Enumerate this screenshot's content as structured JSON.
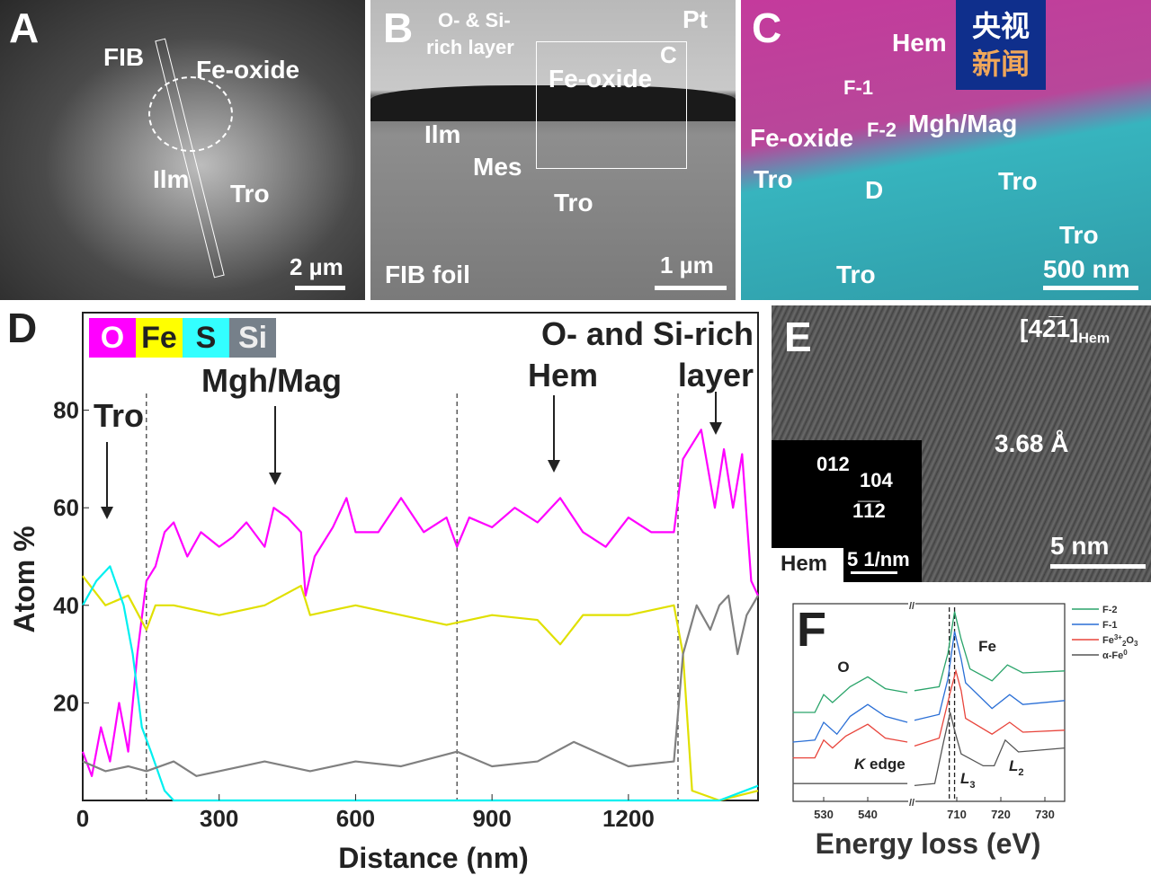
{
  "panels": {
    "A": {
      "letter": "A",
      "labels": {
        "fib": "FIB",
        "fe_oxide": "Fe-oxide",
        "ilm": "Ilm",
        "tro": "Tro"
      },
      "scale_bar": "2 µm"
    },
    "B": {
      "letter": "B",
      "labels": {
        "o_si": "O- & Si-",
        "rich": "rich layer",
        "pt": "Pt",
        "c": "C",
        "fe_oxide": "Fe-oxide",
        "ilm": "Ilm",
        "mes": "Mes",
        "tro": "Tro",
        "fib_foil": "FIB foil"
      },
      "scale_bar": "1 µm"
    },
    "C": {
      "letter": "C",
      "labels": {
        "hem": "Hem",
        "f1": "F-1",
        "f2": "F-2",
        "mgh": "Mgh/Mag",
        "fe_oxide": "Fe-oxide",
        "tro1": "Tro",
        "d": "D",
        "tro2": "Tro",
        "tro3": "Tro",
        "tro4": "Tro"
      },
      "scale_bar": "500 nm",
      "logo": {
        "line1": "央视",
        "line2": "新闻"
      },
      "colors": {
        "fe_oxide_map": "#c43a9c",
        "tro_map": "#37b4be"
      }
    },
    "E": {
      "letter": "E",
      "zone_axis": "[42̅1]",
      "zone_sub": "Hem",
      "d_spacing": "3.68 Å",
      "scale_bar": "5 nm",
      "inset": {
        "spots": [
          "012",
          "104",
          "1̅1̅2"
        ],
        "phase": "Hem",
        "scale": "5 1/nm"
      }
    }
  },
  "chart_data": [
    {
      "panel": "D",
      "type": "line",
      "xlabel": "Distance (nm)",
      "ylabel": "Atom %",
      "xlim": [
        0,
        1485
      ],
      "ylim": [
        0,
        100
      ],
      "xticks": [
        0,
        300,
        600,
        900,
        1200
      ],
      "yticks": [
        20,
        40,
        60,
        80
      ],
      "legend": [
        {
          "name": "O",
          "color": "#ff00ff"
        },
        {
          "name": "Fe",
          "color": "#ffff00"
        },
        {
          "name": "S",
          "color": "#33ffff"
        },
        {
          "name": "Si",
          "color": "#76808a"
        }
      ],
      "legend_placement": "top-left",
      "boundaries_nm": [
        140,
        823,
        1309
      ],
      "annotations": [
        {
          "text": "Tro",
          "x": 55
        },
        {
          "text": "Mgh/Mag",
          "x": 425
        },
        {
          "text": "Hem",
          "x": 1040
        },
        {
          "text": "O- and Si-rich",
          "line2": "layer",
          "x": 1390
        }
      ],
      "series": [
        {
          "name": "O",
          "color": "#ff00ff",
          "points": [
            [
              0,
              10
            ],
            [
              20,
              5
            ],
            [
              40,
              15
            ],
            [
              60,
              8
            ],
            [
              80,
              20
            ],
            [
              100,
              10
            ],
            [
              120,
              30
            ],
            [
              140,
              45
            ],
            [
              160,
              48
            ],
            [
              180,
              55
            ],
            [
              200,
              57
            ],
            [
              230,
              50
            ],
            [
              260,
              55
            ],
            [
              300,
              52
            ],
            [
              330,
              54
            ],
            [
              360,
              57
            ],
            [
              400,
              52
            ],
            [
              420,
              60
            ],
            [
              450,
              58
            ],
            [
              480,
              55
            ],
            [
              490,
              42
            ],
            [
              510,
              50
            ],
            [
              550,
              56
            ],
            [
              580,
              62
            ],
            [
              600,
              55
            ],
            [
              650,
              55
            ],
            [
              700,
              62
            ],
            [
              750,
              55
            ],
            [
              800,
              58
            ],
            [
              823,
              52
            ],
            [
              850,
              58
            ],
            [
              900,
              56
            ],
            [
              950,
              60
            ],
            [
              1000,
              57
            ],
            [
              1050,
              62
            ],
            [
              1100,
              55
            ],
            [
              1150,
              52
            ],
            [
              1200,
              58
            ],
            [
              1250,
              55
            ],
            [
              1300,
              55
            ],
            [
              1320,
              70
            ],
            [
              1360,
              76
            ],
            [
              1390,
              60
            ],
            [
              1410,
              72
            ],
            [
              1430,
              60
            ],
            [
              1450,
              71
            ],
            [
              1470,
              45
            ],
            [
              1485,
              42
            ]
          ]
        },
        {
          "name": "Fe",
          "color": "#e0e000",
          "points": [
            [
              0,
              46
            ],
            [
              50,
              40
            ],
            [
              100,
              42
            ],
            [
              140,
              35
            ],
            [
              160,
              40
            ],
            [
              200,
              40
            ],
            [
              300,
              38
            ],
            [
              400,
              40
            ],
            [
              480,
              44
            ],
            [
              500,
              38
            ],
            [
              600,
              40
            ],
            [
              700,
              38
            ],
            [
              800,
              36
            ],
            [
              900,
              38
            ],
            [
              1000,
              37
            ],
            [
              1050,
              32
            ],
            [
              1100,
              38
            ],
            [
              1200,
              38
            ],
            [
              1300,
              40
            ],
            [
              1320,
              30
            ],
            [
              1340,
              2
            ],
            [
              1400,
              0
            ],
            [
              1485,
              2
            ]
          ]
        },
        {
          "name": "S",
          "color": "#00f0f0",
          "points": [
            [
              0,
              40
            ],
            [
              30,
              45
            ],
            [
              60,
              48
            ],
            [
              90,
              40
            ],
            [
              110,
              30
            ],
            [
              130,
              15
            ],
            [
              150,
              10
            ],
            [
              180,
              2
            ],
            [
              200,
              0
            ],
            [
              600,
              0
            ],
            [
              1000,
              0
            ],
            [
              1400,
              0
            ],
            [
              1485,
              3
            ]
          ]
        },
        {
          "name": "Si",
          "color": "#808080",
          "points": [
            [
              0,
              8
            ],
            [
              50,
              6
            ],
            [
              100,
              7
            ],
            [
              140,
              6
            ],
            [
              200,
              8
            ],
            [
              250,
              5
            ],
            [
              300,
              6
            ],
            [
              400,
              8
            ],
            [
              500,
              6
            ],
            [
              600,
              8
            ],
            [
              700,
              7
            ],
            [
              823,
              10
            ],
            [
              900,
              7
            ],
            [
              1000,
              8
            ],
            [
              1080,
              12
            ],
            [
              1200,
              7
            ],
            [
              1300,
              8
            ],
            [
              1320,
              30
            ],
            [
              1350,
              40
            ],
            [
              1380,
              35
            ],
            [
              1400,
              40
            ],
            [
              1420,
              42
            ],
            [
              1440,
              30
            ],
            [
              1460,
              38
            ],
            [
              1485,
              42
            ]
          ]
        }
      ]
    },
    {
      "panel": "F",
      "type": "line",
      "xlabel": "Energy loss (eV)",
      "x_segments": [
        [
          523,
          549
        ],
        [
          700.4,
          734.5
        ]
      ],
      "xticks": [
        530,
        540,
        710,
        720,
        730
      ],
      "y_units": "arbitrary (offset)",
      "reference_lines_eV": [
        708.3,
        709.5
      ],
      "annotations": {
        "o": "O",
        "fe": "Fe",
        "k_edge_k": "K",
        "k_edge": " edge",
        "l3": "L",
        "l3_sub": "3",
        "l2": "L",
        "l2_sub": "2"
      },
      "legend_placement": "right",
      "series": [
        {
          "name": "F-2",
          "color": "#2aa46a",
          "o": [
            [
              523,
              45
            ],
            [
              528,
              45
            ],
            [
              530,
              54
            ],
            [
              532,
              50
            ],
            [
              536,
              58
            ],
            [
              540,
              63
            ],
            [
              544,
              57
            ],
            [
              549,
              55
            ]
          ],
          "fe": [
            [
              700.4,
              56
            ],
            [
              706,
              58
            ],
            [
              708,
              75
            ],
            [
              709.5,
              96
            ],
            [
              711,
              82
            ],
            [
              713,
              67
            ],
            [
              718,
              61
            ],
            [
              721.5,
              69
            ],
            [
              725,
              65
            ],
            [
              734.5,
              66
            ]
          ]
        },
        {
          "name": "F-1",
          "color": "#2a6fd6",
          "o": [
            [
              523,
              30
            ],
            [
              528,
              31
            ],
            [
              530,
              40
            ],
            [
              533,
              34
            ],
            [
              536,
              43
            ],
            [
              540,
              49
            ],
            [
              544,
              43
            ],
            [
              549,
              40
            ]
          ],
          "fe": [
            [
              700.4,
              41
            ],
            [
              706,
              44
            ],
            [
              708,
              62
            ],
            [
              709.5,
              86
            ],
            [
              711,
              72
            ],
            [
              712,
              60
            ],
            [
              718,
              47
            ],
            [
              722,
              54
            ],
            [
              725,
              49
            ],
            [
              734.5,
              51
            ]
          ]
        },
        {
          "name": "Fe³⁺₂O₃",
          "label": {
            "base": "Fe",
            "sup": "3+",
            "sub": "2",
            "rest": "O",
            "sub2": "3"
          },
          "color": "#e8453c",
          "o": [
            [
              523,
              22
            ],
            [
              528,
              22
            ],
            [
              530,
              31
            ],
            [
              532,
              27
            ],
            [
              535,
              33
            ],
            [
              540,
              39
            ],
            [
              544,
              32
            ],
            [
              549,
              30
            ]
          ],
          "fe": [
            [
              700.4,
              28
            ],
            [
              706,
              32
            ],
            [
              708.5,
              55
            ],
            [
              709.8,
              66
            ],
            [
              711,
              56
            ],
            [
              712,
              42
            ],
            [
              718,
              34
            ],
            [
              722,
              40
            ],
            [
              725,
              35
            ],
            [
              734.5,
              36
            ]
          ]
        },
        {
          "name": "α-Fe⁰",
          "label": {
            "base": "α-Fe",
            "sup": "0"
          },
          "color": "#555555",
          "o": [
            [
              523,
              9
            ],
            [
              549,
              9
            ]
          ],
          "fe": [
            [
              700.4,
              8
            ],
            [
              705,
              9
            ],
            [
              707,
              30
            ],
            [
              708.5,
              45
            ],
            [
              709.5,
              36
            ],
            [
              711,
              24
            ],
            [
              716,
              18
            ],
            [
              718.5,
              18
            ],
            [
              721,
              31
            ],
            [
              724,
              25
            ],
            [
              734.5,
              27
            ]
          ]
        }
      ]
    }
  ]
}
